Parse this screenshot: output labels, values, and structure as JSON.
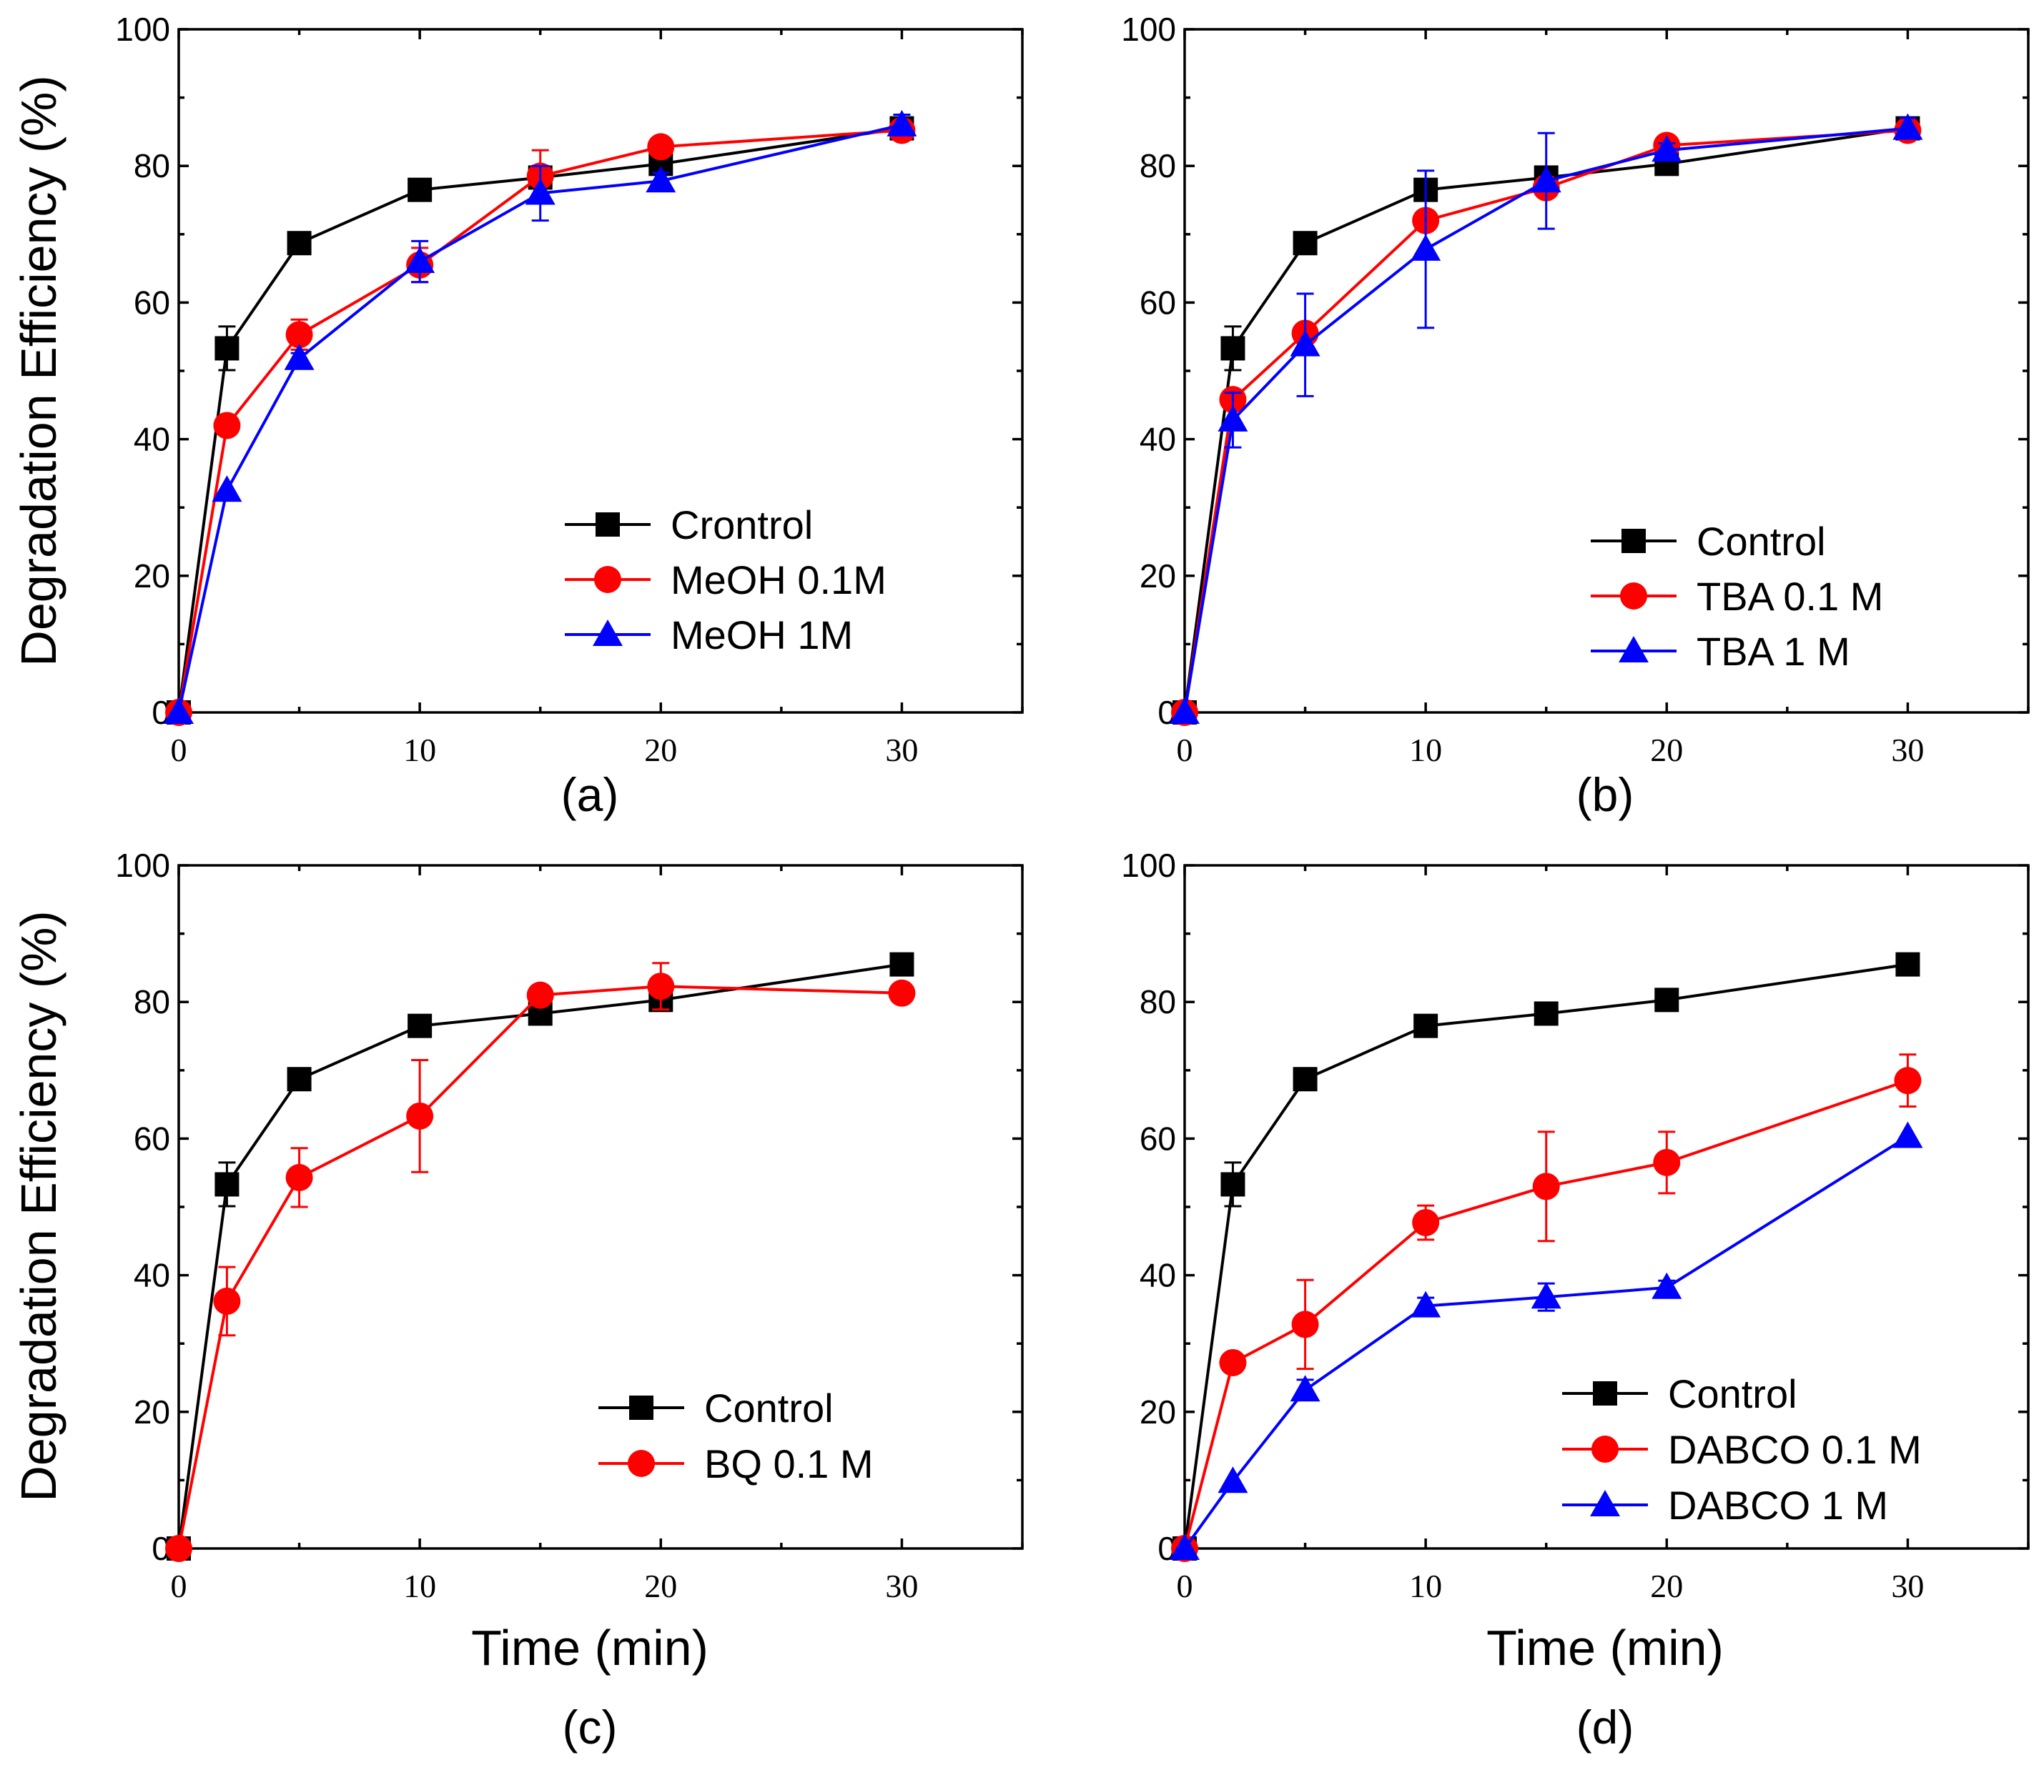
{
  "figure": {
    "ylabel": "Degradation Efficiency (%)",
    "xlabel": "Time (min)"
  },
  "colors": {
    "black": "#000000",
    "red": "#ff0000",
    "blue": "#0000ff"
  },
  "chart_data": [
    {
      "type": "line",
      "panel_label": "(a)",
      "title": "",
      "xlabel": "",
      "ylabel": "Degradation Efficiency (%)",
      "xlim": [
        0,
        35
      ],
      "ylim": [
        0,
        100
      ],
      "xticks": [
        "0",
        "10",
        "20",
        "30"
      ],
      "yticks": [
        "0",
        "20",
        "40",
        "60",
        "80",
        "100"
      ],
      "legend_position": "lower-right",
      "x": [
        0,
        2,
        5,
        10,
        15,
        20,
        30
      ],
      "series": [
        {
          "name": "Crontrol",
          "color": "black",
          "marker": "square",
          "values": [
            0,
            53.3,
            68.7,
            76.5,
            78.3,
            80.3,
            85.5
          ],
          "errors": [
            0,
            3.2,
            1.2,
            1.0,
            0.8,
            1.0,
            1.5
          ]
        },
        {
          "name": "MeOH 0.1M",
          "color": "red",
          "marker": "circle",
          "values": [
            0,
            42.0,
            55.3,
            65.5,
            78.5,
            82.8,
            85.2
          ],
          "errors": [
            0,
            0,
            2.2,
            2.5,
            3.8,
            1.0,
            1.0
          ]
        },
        {
          "name": "MeOH 1M",
          "color": "blue",
          "marker": "triangle",
          "values": [
            0,
            32.5,
            51.8,
            66.0,
            76.0,
            77.8,
            86.0
          ],
          "errors": [
            0,
            0,
            0.8,
            3.0,
            4.0,
            1.2,
            1.5
          ]
        }
      ]
    },
    {
      "type": "line",
      "panel_label": "(b)",
      "title": "",
      "xlabel": "",
      "ylabel": "",
      "xlim": [
        0,
        35
      ],
      "ylim": [
        0,
        100
      ],
      "xticks": [
        "0",
        "10",
        "20",
        "30"
      ],
      "yticks": [
        "0",
        "20",
        "40",
        "60",
        "80",
        "100"
      ],
      "legend_position": "lower-right",
      "x": [
        0,
        2,
        5,
        10,
        15,
        20,
        30
      ],
      "series": [
        {
          "name": "Control",
          "color": "black",
          "marker": "square",
          "values": [
            0,
            53.3,
            68.7,
            76.5,
            78.3,
            80.3,
            85.5
          ],
          "errors": [
            0,
            3.2,
            1.2,
            1.0,
            0.8,
            1.0,
            1.5
          ]
        },
        {
          "name": "TBA 0.1 M",
          "color": "red",
          "marker": "circle",
          "values": [
            0,
            45.8,
            55.5,
            72.0,
            76.8,
            83.0,
            85.2
          ],
          "errors": [
            0,
            0,
            0,
            0,
            0,
            1.0,
            1.0
          ]
        },
        {
          "name": "TBA 1 M",
          "color": "blue",
          "marker": "triangle",
          "values": [
            0,
            42.8,
            53.8,
            67.8,
            77.8,
            82.3,
            85.5
          ],
          "errors": [
            0,
            4.0,
            7.5,
            11.5,
            7.0,
            1.0,
            1.5
          ]
        }
      ]
    },
    {
      "type": "line",
      "panel_label": "(c)",
      "title": "",
      "xlabel": "Time (min)",
      "ylabel": "Degradation Efficiency (%)",
      "xlim": [
        0,
        35
      ],
      "ylim": [
        0,
        100
      ],
      "xticks": [
        "0",
        "10",
        "20",
        "30"
      ],
      "yticks": [
        "0",
        "20",
        "40",
        "60",
        "80",
        "100"
      ],
      "legend_position": "lower-right",
      "x": [
        0,
        2,
        5,
        10,
        15,
        20,
        30
      ],
      "series": [
        {
          "name": "Control",
          "color": "black",
          "marker": "square",
          "values": [
            0,
            53.3,
            68.7,
            76.5,
            78.3,
            80.3,
            85.5
          ],
          "errors": [
            0,
            3.2,
            1.2,
            1.0,
            0.8,
            1.0,
            1.5
          ]
        },
        {
          "name": "BQ 0.1 M",
          "color": "red",
          "marker": "circle",
          "values": [
            0,
            36.2,
            54.3,
            63.3,
            81.0,
            82.3,
            81.3
          ],
          "errors": [
            0,
            5.0,
            4.3,
            8.2,
            0.8,
            3.4,
            1.0
          ]
        }
      ]
    },
    {
      "type": "line",
      "panel_label": "(d)",
      "title": "",
      "xlabel": "Time (min)",
      "ylabel": "",
      "xlim": [
        0,
        35
      ],
      "ylim": [
        0,
        100
      ],
      "xticks": [
        "0",
        "10",
        "20",
        "30"
      ],
      "yticks": [
        "0",
        "20",
        "40",
        "60",
        "80",
        "100"
      ],
      "legend_position": "lower-right",
      "x": [
        0,
        2,
        5,
        10,
        15,
        20,
        30
      ],
      "series": [
        {
          "name": "Control",
          "color": "black",
          "marker": "square",
          "values": [
            0,
            53.3,
            68.7,
            76.5,
            78.3,
            80.3,
            85.5
          ],
          "errors": [
            0,
            3.2,
            1.2,
            1.0,
            0.8,
            1.0,
            1.5
          ]
        },
        {
          "name": "DABCO 0.1 M",
          "color": "red",
          "marker": "circle",
          "values": [
            0,
            27.2,
            32.8,
            47.7,
            53.0,
            56.5,
            68.5
          ],
          "errors": [
            0,
            0,
            6.5,
            2.5,
            8.0,
            4.5,
            3.8
          ]
        },
        {
          "name": "DABCO 1 M",
          "color": "blue",
          "marker": "triangle",
          "values": [
            0,
            9.8,
            23.2,
            35.5,
            36.8,
            38.2,
            60.3
          ],
          "errors": [
            0,
            0,
            1.5,
            1.2,
            2.0,
            1.0,
            0
          ]
        }
      ]
    }
  ]
}
